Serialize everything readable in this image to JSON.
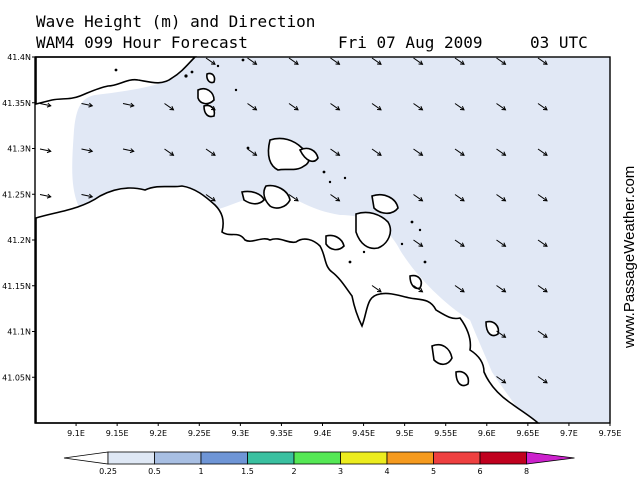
{
  "header": {
    "title": "Wave Height (m) and Direction",
    "model": "WAM4 099 Hour Forecast",
    "date": "Fri 07 Aug 2009",
    "time": "03 UTC"
  },
  "brand": "www.PassageWeather.com",
  "axes": {
    "lat_labels": [
      "41.4N",
      "41.35N",
      "41.3N",
      "41.25N",
      "41.2N",
      "41.15N",
      "41.1N",
      "41.05N"
    ],
    "lat_values": [
      41.4,
      41.35,
      41.3,
      41.25,
      41.2,
      41.15,
      41.1,
      41.05
    ],
    "lon_labels": [
      "9.1E",
      "9.15E",
      "9.2E",
      "9.25E",
      "9.3E",
      "9.35E",
      "9.4E",
      "9.45E",
      "9.5E",
      "9.55E",
      "9.6E",
      "9.65E",
      "9.7E",
      "9.75E"
    ],
    "lon_values": [
      9.1,
      9.15,
      9.2,
      9.25,
      9.3,
      9.35,
      9.4,
      9.45,
      9.5,
      9.55,
      9.6,
      9.65,
      9.7,
      9.75
    ]
  },
  "legend": {
    "labels": [
      "0.25",
      "0.5",
      "1",
      "1.5",
      "2",
      "3",
      "4",
      "5",
      "6",
      "8"
    ],
    "colors": [
      "#ffffff",
      "#dfe8f5",
      "#a8bfe3",
      "#6e95d6",
      "#3ac0a0",
      "#55e855",
      "#ecec1e",
      "#f59a1e",
      "#ee4040",
      "#c0001e",
      "#cc22cc"
    ]
  },
  "colors": {
    "sea_wave": "#e1e8f5",
    "land": "#ffffff",
    "coast": "#000000"
  }
}
